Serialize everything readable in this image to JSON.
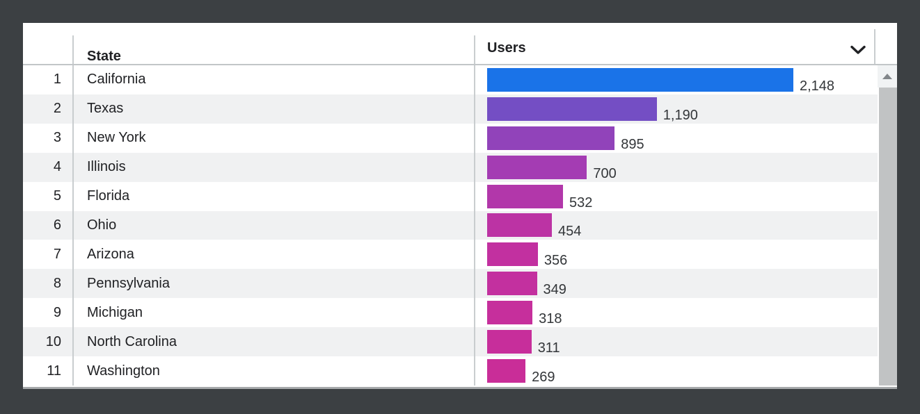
{
  "table": {
    "header": {
      "state_label": "State",
      "users_label": "Users"
    },
    "rows": [
      {
        "rank": "1",
        "state": "California",
        "users_display": "2,148",
        "users_value": 2148,
        "bar_color": "#1a73e8"
      },
      {
        "rank": "2",
        "state": "Texas",
        "users_display": "1,190",
        "users_value": 1190,
        "bar_color": "#744ec4"
      },
      {
        "rank": "3",
        "state": "New York",
        "users_display": "895",
        "users_value": 895,
        "bar_color": "#9143ba"
      },
      {
        "rank": "4",
        "state": "Illinois",
        "users_display": "700",
        "users_value": 700,
        "bar_color": "#a43cb3"
      },
      {
        "rank": "5",
        "state": "Florida",
        "users_display": "532",
        "users_value": 532,
        "bar_color": "#b237aa"
      },
      {
        "rank": "6",
        "state": "Ohio",
        "users_display": "454",
        "users_value": 454,
        "bar_color": "#bc33a4"
      },
      {
        "rank": "7",
        "state": "Arizona",
        "users_display": "356",
        "users_value": 356,
        "bar_color": "#c230a0"
      },
      {
        "rank": "8",
        "state": "Pennsylvania",
        "users_display": "349",
        "users_value": 349,
        "bar_color": "#c3309f"
      },
      {
        "rank": "9",
        "state": "Michigan",
        "users_display": "318",
        "users_value": 318,
        "bar_color": "#c62f9c"
      },
      {
        "rank": "10",
        "state": "North Carolina",
        "users_display": "311",
        "users_value": 311,
        "bar_color": "#c72e9b"
      },
      {
        "rank": "11",
        "state": "Washington",
        "users_display": "269",
        "users_value": 269,
        "bar_color": "#c92d98"
      }
    ]
  },
  "colors": {
    "background": "#3c4043",
    "panel": "#ffffff",
    "row_stripe": "#f0f1f2",
    "divider": "#c9cdcf",
    "text": "#202124",
    "bar_top_color": "#1a73e8",
    "bar_bottom_color": "#c92d98",
    "scrollbar_thumb": "#c1c3c4"
  },
  "chart_data": {
    "type": "bar",
    "orientation": "horizontal",
    "categories": [
      "California",
      "Texas",
      "New York",
      "Illinois",
      "Florida",
      "Ohio",
      "Arizona",
      "Pennsylvania",
      "Michigan",
      "North Carolina",
      "Washington"
    ],
    "values": [
      2148,
      1190,
      895,
      700,
      532,
      454,
      356,
      349,
      318,
      311,
      269
    ],
    "value_labels": [
      "2,148",
      "1,190",
      "895",
      "700",
      "532",
      "454",
      "356",
      "349",
      "318",
      "311",
      "269"
    ],
    "title": "",
    "xlabel": "Users",
    "ylabel": "State",
    "xlim": [
      0,
      2148
    ],
    "grid": false,
    "legend": false
  }
}
